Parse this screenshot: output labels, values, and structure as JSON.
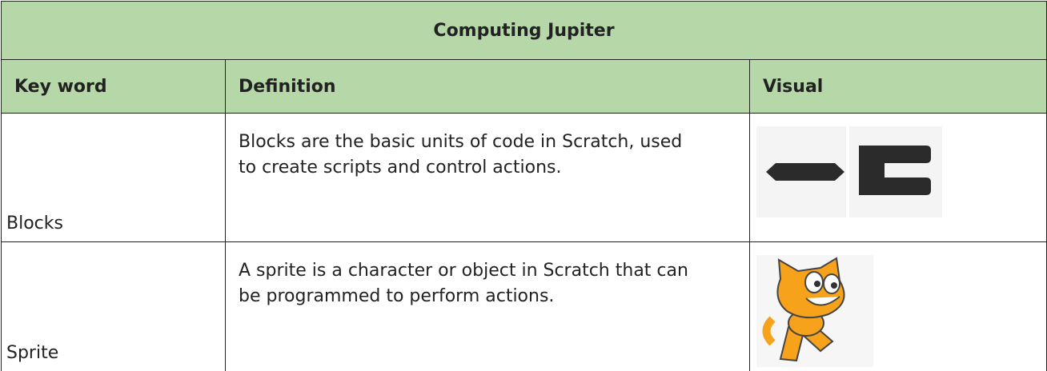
{
  "table": {
    "title": "Computing Jupiter",
    "headers": [
      "Key word",
      "Definition",
      "Visual"
    ],
    "rows": [
      [
        "Blocks",
        "Blocks are the basic units of code in Scratch, used to create scripts and control actions."
      ],
      [
        "Sprite",
        "A sprite is a character or object in Scratch that can be programmed to perform actions."
      ]
    ]
  }
}
